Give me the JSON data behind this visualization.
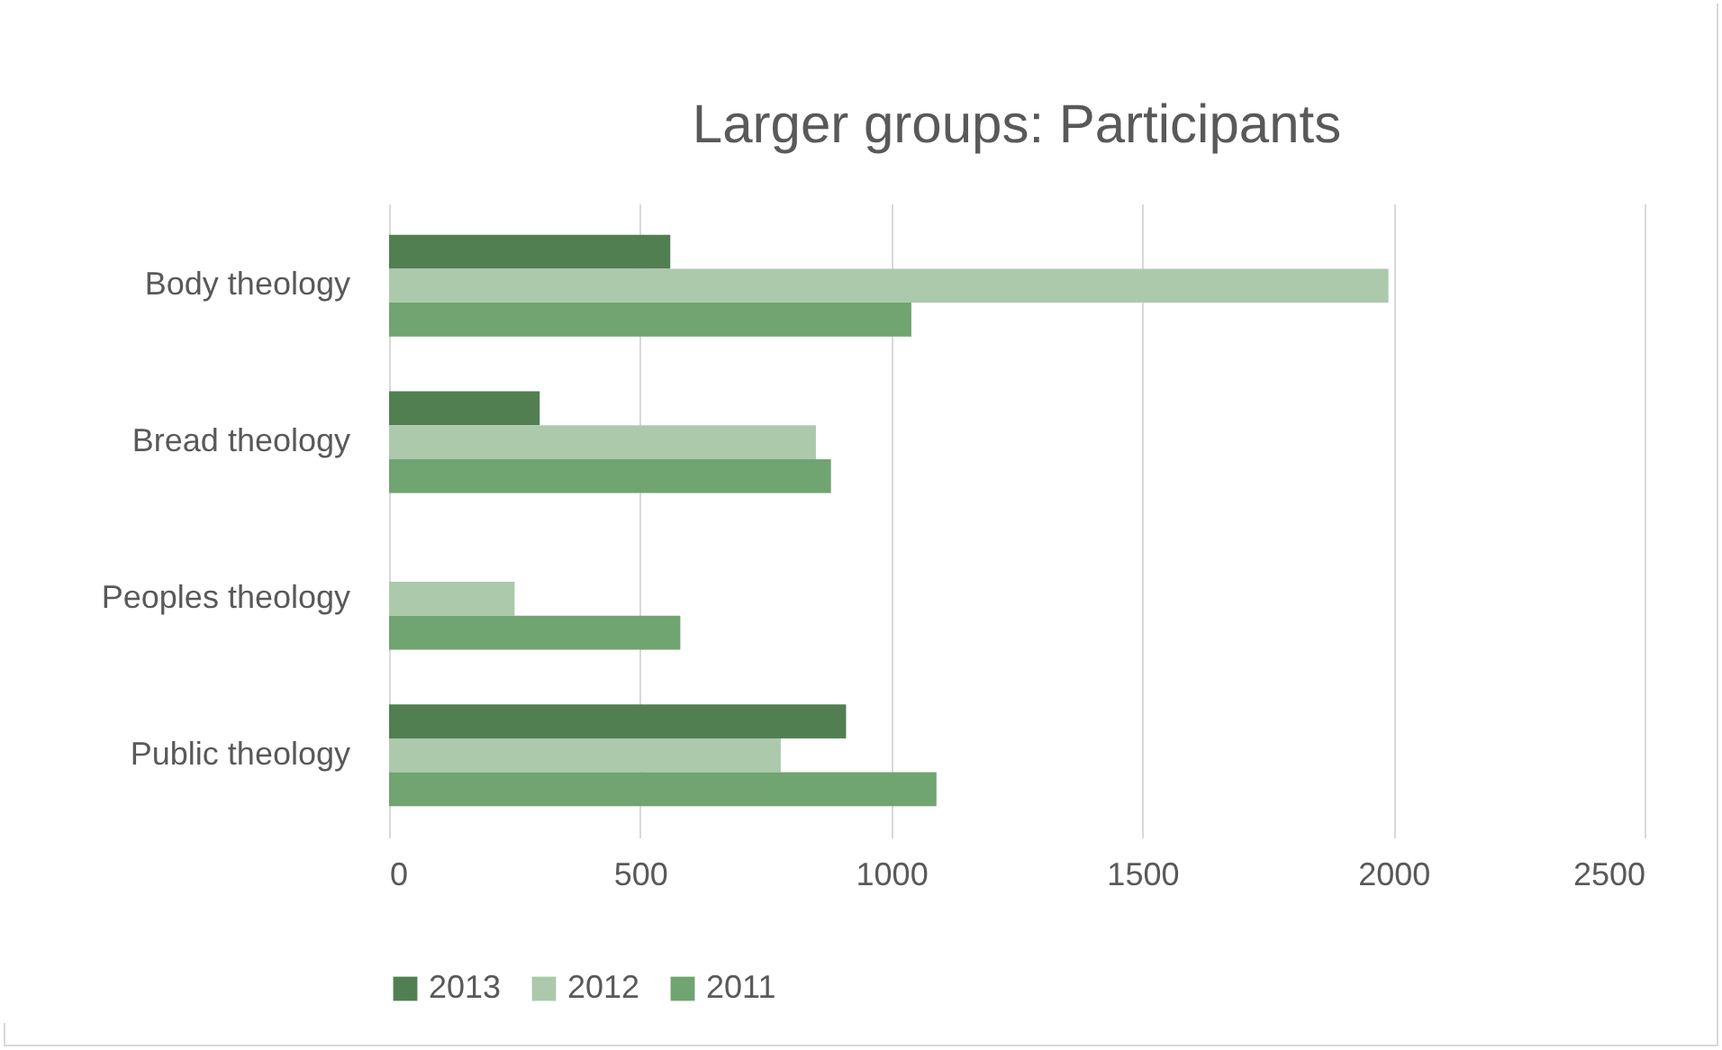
{
  "chart_data": {
    "type": "bar",
    "orientation": "horizontal",
    "title": "Larger groups: Participants",
    "categories": [
      "Body theology",
      "Bread theology",
      "Peoples theology",
      "Public theology"
    ],
    "series": [
      {
        "name": "2013",
        "color": "#517f52",
        "values": [
          560,
          300,
          null,
          910
        ]
      },
      {
        "name": "2012",
        "color": "#acc9ac",
        "values": [
          1990,
          850,
          250,
          780
        ]
      },
      {
        "name": "2011",
        "color": "#70a471",
        "values": [
          1040,
          880,
          580,
          1090
        ]
      }
    ],
    "xlim": [
      0,
      2500
    ],
    "xticks": [
      0,
      500,
      1000,
      1500,
      2000,
      2500
    ],
    "grid": "x",
    "legend": "bottom"
  }
}
